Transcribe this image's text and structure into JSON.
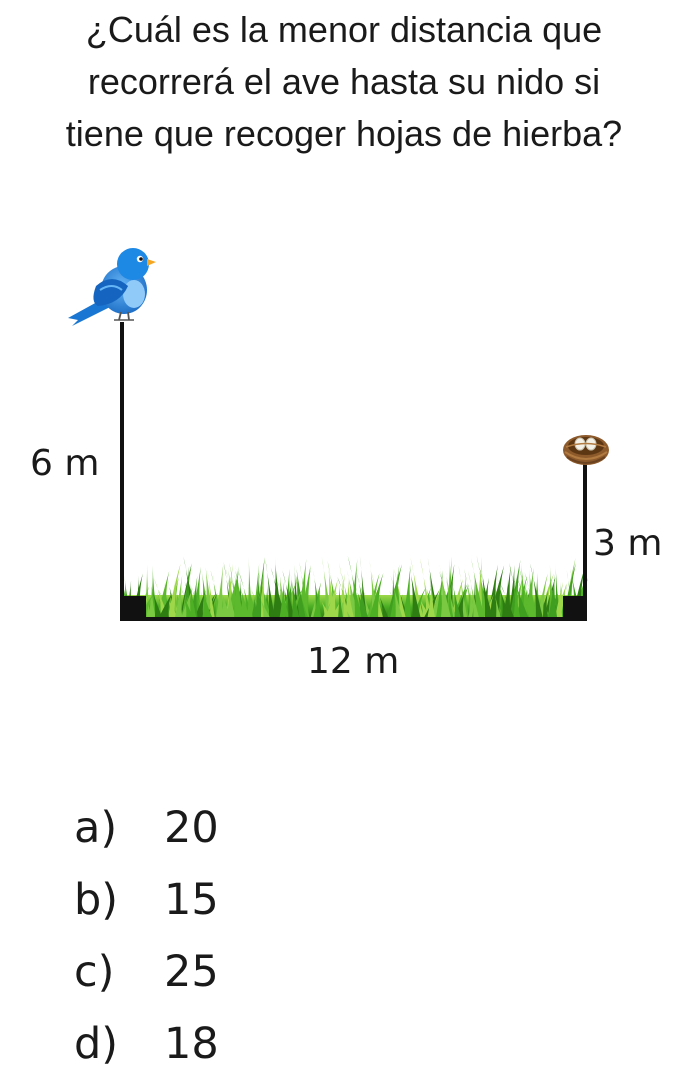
{
  "question": {
    "lines": [
      "¿Cuál es la menor distancia que",
      "recorrerá el ave hasta su nido si",
      "tiene que recoger hojas de hierba?"
    ]
  },
  "diagram": {
    "left_height_label": "6 m",
    "right_height_label": "3 m",
    "ground_width_label": "12 m",
    "left_pole_height_m": 6,
    "right_pole_height_m": 3,
    "ground_width_m": 12,
    "icons": [
      "bird-icon",
      "nest-icon",
      "grass"
    ],
    "colors": {
      "bird": "#1e88e5",
      "nest": "#8d5a2b",
      "grass": "#3f9e1f",
      "lines": "#111111"
    }
  },
  "options": [
    {
      "letter": "a)",
      "value": "20"
    },
    {
      "letter": "b)",
      "value": "15"
    },
    {
      "letter": "c)",
      "value": "25"
    },
    {
      "letter": "d)",
      "value": "18"
    }
  ]
}
